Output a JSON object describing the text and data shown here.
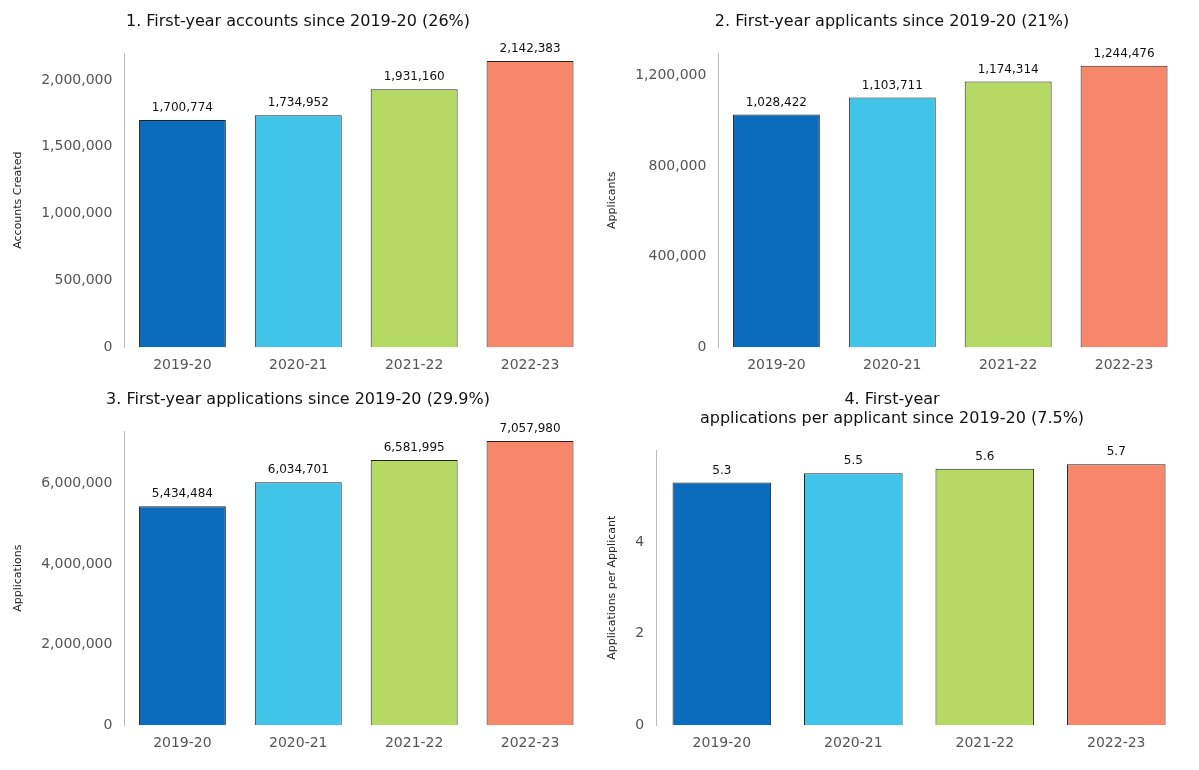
{
  "chart_data": [
    {
      "type": "bar",
      "title": "1. First-year accounts since 2019-20 (26%)",
      "ylabel": "Accounts Created",
      "categories": [
        "2019-20",
        "2020-21",
        "2021-22",
        "2022-23"
      ],
      "values": [
        1700774,
        1734952,
        1931160,
        2142383
      ],
      "value_labels": [
        "1,700,774",
        "1,734,952",
        "1,931,160",
        "2,142,383"
      ],
      "colors": [
        "#0b6bbd",
        "#40c4ea",
        "#b5d962",
        "#f7876b"
      ],
      "ylim": [
        0,
        2200000
      ],
      "yticks": [
        0,
        {
          "value": 500000,
          "label": "500,000"
        },
        {
          "value": 1000000,
          "label": "1,000,000"
        },
        {
          "value": 1500000,
          "label": "1,500,000"
        },
        {
          "value": 2000000,
          "label": "2,000,000"
        }
      ],
      "grid": false,
      "legend": false
    },
    {
      "type": "bar",
      "title": "2. First-year applicants since 2019-20 (21%)",
      "ylabel": "Applicants",
      "categories": [
        "2019-20",
        "2020-21",
        "2021-22",
        "2022-23"
      ],
      "values": [
        1028422,
        1103711,
        1174314,
        1244476
      ],
      "value_labels": [
        "1,028,422",
        "1,103,711",
        "1,174,314",
        "1,244,476"
      ],
      "colors": [
        "#0b6bbd",
        "#40c4ea",
        "#b5d962",
        "#f7876b"
      ],
      "ylim": [
        0,
        1300000
      ],
      "yticks": [
        0,
        {
          "value": 400000,
          "label": "400,000"
        },
        {
          "value": 800000,
          "label": "800,000"
        },
        {
          "value": 1200000,
          "label": "1,200,000"
        }
      ],
      "grid": false,
      "legend": false
    },
    {
      "type": "bar",
      "title": "3. First-year applications since 2019-20 (29.9%)",
      "ylabel": "Applications",
      "categories": [
        "2019-20",
        "2020-21",
        "2021-22",
        "2022-23"
      ],
      "values": [
        5434484,
        6034701,
        6581995,
        7057980
      ],
      "value_labels": [
        "5,434,484",
        "6,034,701",
        "6,581,995",
        "7,057,980"
      ],
      "colors": [
        "#0b6bbd",
        "#40c4ea",
        "#b5d962",
        "#f7876b"
      ],
      "ylim": [
        0,
        7300000
      ],
      "yticks": [
        0,
        {
          "value": 2000000,
          "label": "2,000,000"
        },
        {
          "value": 4000000,
          "label": "4,000,000"
        },
        {
          "value": 6000000,
          "label": "6,000,000"
        }
      ],
      "grid": false,
      "legend": false
    },
    {
      "type": "bar",
      "title": "4. First-year\napplications per applicant since 2019-20 (7.5%)",
      "ylabel": "Applications per Applicant",
      "categories": [
        "2019-20",
        "2020-21",
        "2021-22",
        "2022-23"
      ],
      "values": [
        5.3,
        5.5,
        5.6,
        5.7
      ],
      "value_labels": [
        "5.3",
        "5.5",
        "5.6",
        "5.7"
      ],
      "colors": [
        "#0b6bbd",
        "#40c4ea",
        "#b5d962",
        "#f7876b"
      ],
      "ylim": [
        0,
        6
      ],
      "yticks": [
        0,
        2,
        4
      ],
      "grid": false,
      "legend": false
    }
  ]
}
